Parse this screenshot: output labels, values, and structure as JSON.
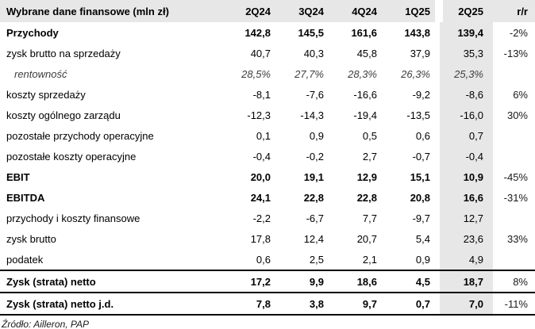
{
  "meta": {
    "source_note": "Źródło: Ailleron, PAP"
  },
  "colors": {
    "header_bg": "#e7e7e7",
    "highlight_column_bg": "#e7e7e7",
    "rule_color": "#000000",
    "text_color": "#000000"
  },
  "table": {
    "title_column_header": "Wybrane dane finansowe (mln zł)",
    "period_headers": [
      "2Q24",
      "3Q24",
      "4Q24",
      "1Q25",
      "2Q25",
      "r/r"
    ],
    "highlighted_period": "2Q25",
    "rows": [
      {
        "label": "Przychody",
        "emphasis": "bold",
        "rule_top": false,
        "rule_bottom": false,
        "values": [
          "142,8",
          "145,5",
          "161,6",
          "143,8",
          "139,4"
        ],
        "yoy": "-2%"
      },
      {
        "label": "zysk brutto na sprzedaży",
        "emphasis": "normal",
        "rule_top": false,
        "rule_bottom": false,
        "values": [
          "40,7",
          "40,3",
          "45,8",
          "37,9",
          "35,3"
        ],
        "yoy": "-13%"
      },
      {
        "label": "rentowność",
        "emphasis": "italic",
        "rule_top": false,
        "rule_bottom": false,
        "values": [
          "28,5%",
          "27,7%",
          "28,3%",
          "26,3%",
          "25,3%"
        ],
        "yoy": ""
      },
      {
        "label": "koszty sprzedaży",
        "emphasis": "normal",
        "rule_top": false,
        "rule_bottom": false,
        "values": [
          "-8,1",
          "-7,6",
          "-16,6",
          "-9,2",
          "-8,6"
        ],
        "yoy": "6%"
      },
      {
        "label": "koszty ogólnego zarządu",
        "emphasis": "normal",
        "rule_top": false,
        "rule_bottom": false,
        "values": [
          "-12,3",
          "-14,3",
          "-19,4",
          "-13,5",
          "-16,0"
        ],
        "yoy": "30%"
      },
      {
        "label": "pozostałe przychody operacyjne",
        "emphasis": "normal",
        "rule_top": false,
        "rule_bottom": false,
        "values": [
          "0,1",
          "0,9",
          "0,5",
          "0,6",
          "0,7"
        ],
        "yoy": ""
      },
      {
        "label": "pozostałe koszty operacyjne",
        "emphasis": "normal",
        "rule_top": false,
        "rule_bottom": false,
        "values": [
          "-0,4",
          "-0,2",
          "2,7",
          "-0,7",
          "-0,4"
        ],
        "yoy": ""
      },
      {
        "label": "EBIT",
        "emphasis": "bold",
        "rule_top": false,
        "rule_bottom": false,
        "values": [
          "20,0",
          "19,1",
          "12,9",
          "15,1",
          "10,9"
        ],
        "yoy": "-45%"
      },
      {
        "label": "EBITDA",
        "emphasis": "bold",
        "rule_top": false,
        "rule_bottom": false,
        "values": [
          "24,1",
          "22,8",
          "22,8",
          "20,8",
          "16,6"
        ],
        "yoy": "-31%"
      },
      {
        "label": "przychody i koszty finansowe",
        "emphasis": "normal",
        "rule_top": false,
        "rule_bottom": false,
        "values": [
          "-2,2",
          "-6,7",
          "7,7",
          "-9,7",
          "12,7"
        ],
        "yoy": ""
      },
      {
        "label": "zysk brutto",
        "emphasis": "normal",
        "rule_top": false,
        "rule_bottom": false,
        "values": [
          "17,8",
          "12,4",
          "20,7",
          "5,4",
          "23,6"
        ],
        "yoy": "33%"
      },
      {
        "label": "podatek",
        "emphasis": "normal",
        "rule_top": false,
        "rule_bottom": false,
        "values": [
          "0,6",
          "2,5",
          "2,1",
          "0,9",
          "4,9"
        ],
        "yoy": ""
      },
      {
        "label": "Zysk (strata) netto",
        "emphasis": "bold",
        "rule_top": true,
        "rule_bottom": false,
        "values": [
          "17,2",
          "9,9",
          "18,6",
          "4,5",
          "18,7"
        ],
        "yoy": "8%"
      },
      {
        "label": "Zysk (strata) netto j.d.",
        "emphasis": "bold",
        "rule_top": true,
        "rule_bottom": true,
        "values": [
          "7,8",
          "3,8",
          "9,7",
          "0,7",
          "7,0"
        ],
        "yoy": "-11%"
      }
    ]
  }
}
